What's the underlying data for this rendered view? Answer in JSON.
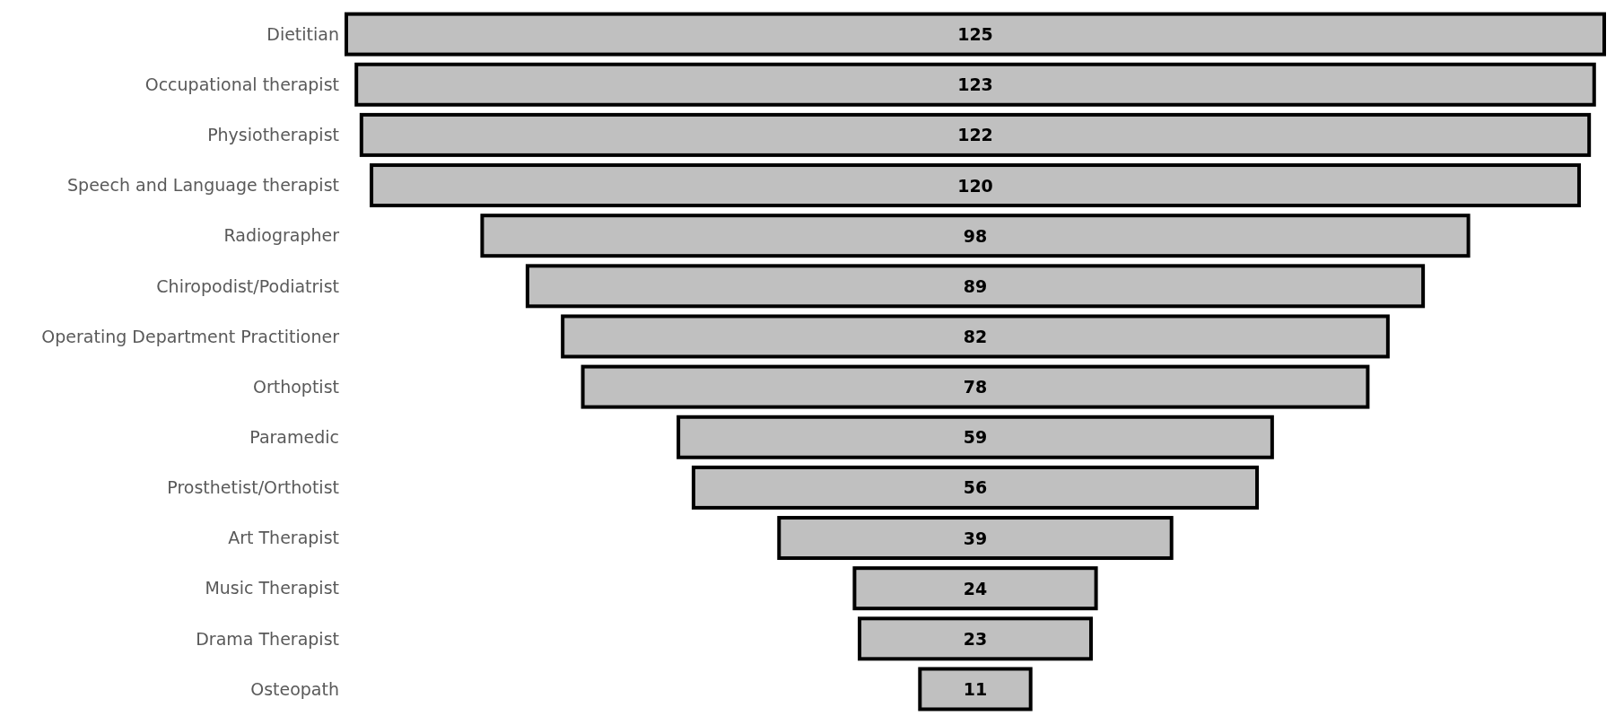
{
  "chart_data": {
    "type": "other",
    "categories": [
      "Dietitian",
      "Occupational therapist",
      "Physiotherapist",
      "Speech and Language therapist",
      "Radiographer",
      "Chiropodist/Podiatrist",
      "Operating Department Practitioner",
      "Orthoptist",
      "Paramedic",
      "Prosthetist/Orthotist",
      "Art Therapist",
      "Music Therapist",
      "Drama Therapist",
      "Osteopath"
    ],
    "values": [
      125,
      123,
      122,
      120,
      98,
      89,
      82,
      78,
      59,
      56,
      39,
      24,
      23,
      11
    ],
    "color": "#c0c0c0",
    "data_labels": true
  }
}
